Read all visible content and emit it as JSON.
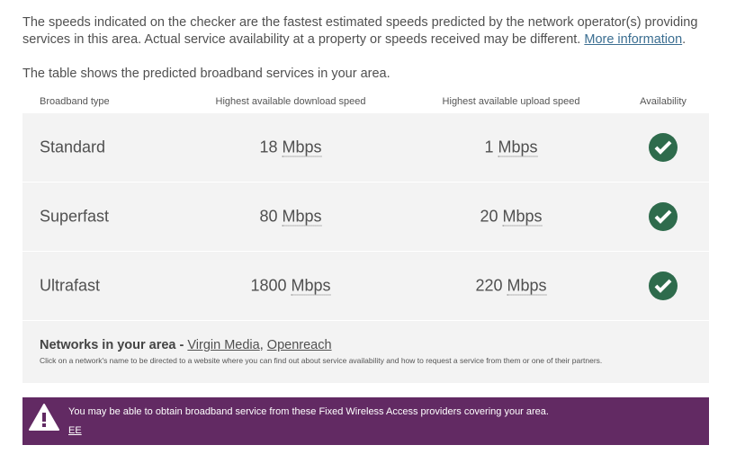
{
  "intro": {
    "text": "The speeds indicated on the checker are the fastest estimated speeds predicted by the network operator(s) providing services in this area. Actual service availability at a property or speeds received may be different.",
    "link": "More information",
    "after": "."
  },
  "table_intro": "The table shows the predicted broadband services in your area.",
  "headers": [
    "Broadband type",
    "Highest available download speed",
    "Highest available upload speed",
    "Availability"
  ],
  "rows": [
    {
      "type": "Standard",
      "down": "18",
      "up": "1",
      "unit": "Mbps",
      "available": true
    },
    {
      "type": "Superfast",
      "down": "80",
      "up": "20",
      "unit": "Mbps",
      "available": true
    },
    {
      "type": "Ultrafast",
      "down": "1800",
      "up": "220",
      "unit": "Mbps",
      "available": true
    }
  ],
  "networks": {
    "label": "Networks in your area - ",
    "items": [
      "Virgin Media",
      "Openreach"
    ],
    "sep": ", ",
    "note": "Click on a network's name to be directed to a website where you can find out about service availability and how to request a service from them or one of their partners."
  },
  "banner": {
    "message": "You may be able to obtain broadband service from these Fixed Wireless Access providers covering your area.",
    "link": "EE",
    "color": "#622a63"
  },
  "colors": {
    "check": "#2e6b4c"
  }
}
